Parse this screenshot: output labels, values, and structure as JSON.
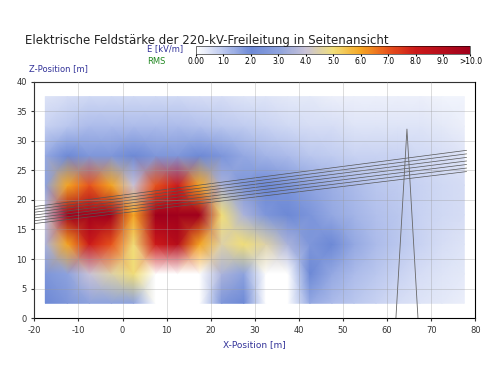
{
  "chart_data": {
    "type": "heatmap",
    "title": "Elektrische Feldstärke der 220-kV-Freileitung in Seitenansicht",
    "x_label": "X-Position [m]",
    "y_label": "Z-Position [m]",
    "xlim": [
      -20,
      80
    ],
    "ylim": [
      0,
      40
    ],
    "xticks": [
      -20,
      -10,
      0,
      10,
      20,
      30,
      40,
      50,
      60,
      70,
      80
    ],
    "yticks": [
      0,
      5,
      10,
      15,
      20,
      25,
      30,
      35,
      40
    ],
    "grid": true,
    "x": [
      -17.5,
      -12.5,
      -7.5,
      -2.5,
      2.5,
      7.5,
      12.5,
      17.5,
      22.5,
      27.5,
      32.5,
      37.5,
      42.5,
      47.5,
      52.5,
      57.5,
      62.5,
      67.5,
      72.5,
      77.5
    ],
    "y": [
      2.5,
      7.5,
      12.5,
      17.5,
      22.5,
      27.5,
      32.5,
      37.5
    ],
    "cells": [
      [
        2,
        2.5,
        3,
        3,
        3,
        0,
        0,
        0,
        2.5,
        2,
        0,
        0,
        1.5,
        1.2,
        1,
        0.8,
        0.6,
        0.5,
        0.4,
        0.3
      ],
      [
        2.5,
        3,
        4,
        4.5,
        5,
        0,
        0,
        0,
        3.5,
        3,
        0,
        0,
        2,
        1.5,
        1.2,
        1,
        0.8,
        0.6,
        0.5,
        0.4
      ],
      [
        3.5,
        6,
        8,
        7,
        5,
        8,
        9,
        6,
        4.5,
        5,
        4.5,
        3.5,
        2.5,
        2,
        1.5,
        1.2,
        1,
        0.8,
        0.6,
        0.5
      ],
      [
        4,
        10,
        12,
        11,
        6,
        11,
        12,
        10,
        5,
        3.5,
        2.5,
        2,
        1.8,
        1.5,
        1.3,
        1.1,
        1,
        0.8,
        0.7,
        0.6
      ],
      [
        3,
        6,
        7,
        6,
        4,
        7,
        8,
        6,
        3.5,
        2.5,
        2,
        1.8,
        1.6,
        1.4,
        1.2,
        1,
        0.9,
        0.8,
        0.7,
        0.6
      ],
      [
        1.5,
        2,
        2.5,
        2.5,
        2,
        2.5,
        2.5,
        2,
        1.8,
        1.5,
        1.3,
        1.2,
        1,
        0.9,
        0.8,
        0.8,
        0.8,
        0.7,
        0.6,
        0.5
      ],
      [
        0.8,
        1,
        1.2,
        1.2,
        1.2,
        1.2,
        1.2,
        1.1,
        1,
        0.9,
        0.8,
        0.7,
        0.6,
        0.6,
        0.5,
        0.5,
        0.5,
        0.5,
        0.4,
        0.3
      ],
      [
        0.5,
        0.6,
        0.7,
        0.7,
        0.7,
        0.7,
        0.7,
        0.6,
        0.6,
        0.5,
        0.5,
        0.4,
        0.4,
        0.3,
        0.3,
        0.3,
        0.3,
        0.3,
        0.2,
        0.2
      ]
    ],
    "colorbar": {
      "label": "E [kV/m]",
      "sublabel": "RMS",
      "range": [
        0,
        10
      ],
      "ticks": [
        {
          "value": 0,
          "label": "0.00"
        },
        {
          "value": 1,
          "label": "1.0"
        },
        {
          "value": 2,
          "label": "2.0"
        },
        {
          "value": 3,
          "label": "3.0"
        },
        {
          "value": 4,
          "label": "4.0"
        },
        {
          "value": 5,
          "label": "5.0"
        },
        {
          "value": 6,
          "label": "6.0"
        },
        {
          "value": 7,
          "label": "7.0"
        },
        {
          "value": 8,
          "label": "8.0"
        },
        {
          "value": 9,
          "label": "9.0"
        },
        {
          "value": 10,
          "label": ">10.0"
        }
      ]
    }
  }
}
